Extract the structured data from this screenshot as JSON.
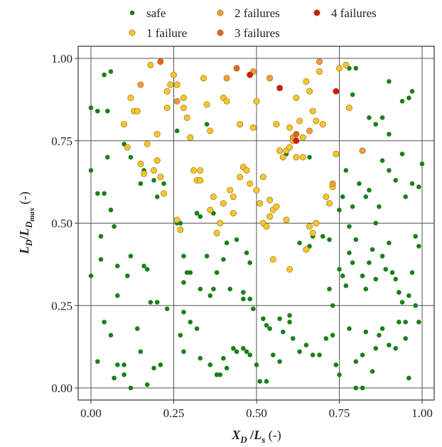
{
  "chart_data": {
    "type": "scatter",
    "title": "",
    "xlim": [
      0,
      1
    ],
    "ylim": [
      0,
      1
    ],
    "grid": true,
    "legend_placement": "top",
    "x_ticks": [
      {
        "value": 0,
        "label": "0.00"
      },
      {
        "value": 0.25,
        "label": "0.25"
      },
      {
        "value": 0.5,
        "label": "0.50"
      },
      {
        "value": 0.75,
        "label": "0.75"
      },
      {
        "value": 1,
        "label": "1.00"
      }
    ],
    "y_ticks": [
      {
        "value": 0,
        "label": "0.00"
      },
      {
        "value": 0.25,
        "label": "0.25"
      },
      {
        "value": 0.5,
        "label": "0.50"
      },
      {
        "value": 0.75,
        "label": "0.75"
      },
      {
        "value": 1,
        "label": "1.00"
      }
    ],
    "xlabel": {
      "main": "X",
      "sub": "D",
      "slash": " /",
      "main2": "L",
      "sub2": "s",
      "unit": " (-)"
    },
    "ylabel": {
      "main": "L",
      "sub": "D",
      "slash": "/",
      "main2": "L",
      "sub2": "D",
      "subsub2": "max",
      "unit": " (-)"
    },
    "series": [
      {
        "name": "safe",
        "color": "#1a7f1a",
        "points": [
          [
            0.0,
            0.85
          ],
          [
            0.02,
            0.84
          ],
          [
            0.04,
            0.95
          ],
          [
            0.05,
            0.84
          ],
          [
            0.06,
            0.96
          ],
          [
            0.0,
            0.66
          ],
          [
            0.02,
            0.59
          ],
          [
            0.04,
            0.59
          ],
          [
            0.05,
            0.7
          ],
          [
            0.06,
            0.54
          ],
          [
            0.1,
            0.74
          ],
          [
            0.12,
            0.7
          ],
          [
            0.15,
            0.62
          ],
          [
            0.16,
            0.66
          ],
          [
            0.19,
            0.63
          ],
          [
            0.2,
            0.58
          ],
          [
            0.22,
            0.62
          ],
          [
            0.26,
            0.78
          ],
          [
            0.32,
            0.53
          ],
          [
            0.33,
            0.52
          ],
          [
            0.35,
            0.8
          ],
          [
            0.37,
            0.53
          ],
          [
            0.0,
            0.34
          ],
          [
            0.03,
            0.46
          ],
          [
            0.03,
            0.39
          ],
          [
            0.07,
            0.49
          ],
          [
            0.08,
            0.37
          ],
          [
            0.08,
            0.28
          ],
          [
            0.11,
            0.34
          ],
          [
            0.12,
            0.4
          ],
          [
            0.16,
            0.37
          ],
          [
            0.17,
            0.36
          ],
          [
            0.18,
            0.26
          ],
          [
            0.2,
            0.26
          ],
          [
            0.23,
            0.24
          ],
          [
            0.26,
            0.5
          ],
          [
            0.27,
            0.5
          ],
          [
            0.28,
            0.4
          ],
          [
            0.29,
            0.35
          ],
          [
            0.3,
            0.35
          ],
          [
            0.28,
            0.32
          ],
          [
            0.28,
            0.23
          ],
          [
            0.33,
            0.3
          ],
          [
            0.35,
            0.4
          ],
          [
            0.36,
            0.28
          ],
          [
            0.37,
            0.3
          ],
          [
            0.38,
            0.35
          ],
          [
            0.4,
            0.39
          ],
          [
            0.41,
            0.44
          ],
          [
            0.42,
            0.3
          ],
          [
            0.44,
            0.45
          ],
          [
            0.46,
            0.29
          ],
          [
            0.47,
            0.41
          ],
          [
            0.48,
            0.38
          ],
          [
            0.46,
            0.27
          ],
          [
            0.48,
            0.27
          ],
          [
            0.49,
            0.24
          ],
          [
            0.52,
            0.21
          ],
          [
            0.53,
            0.19
          ],
          [
            0.54,
            0.18
          ],
          [
            0.57,
            0.21
          ],
          [
            0.6,
            0.22
          ],
          [
            0.02,
            0.08
          ],
          [
            0.04,
            0.2
          ],
          [
            0.06,
            0.16
          ],
          [
            0.07,
            0.03
          ],
          [
            0.08,
            0.07
          ],
          [
            0.1,
            0.07
          ],
          [
            0.1,
            0.04
          ],
          [
            0.12,
            0.0
          ],
          [
            0.14,
            0.18
          ],
          [
            0.15,
            0.11
          ],
          [
            0.17,
            0.01
          ],
          [
            0.19,
            0.06
          ],
          [
            0.21,
            0.07
          ],
          [
            0.27,
            0.16
          ],
          [
            0.28,
            0.11
          ],
          [
            0.3,
            0.2
          ],
          [
            0.32,
            0.18
          ],
          [
            0.33,
            0.09
          ],
          [
            0.36,
            0.07
          ],
          [
            0.38,
            0.04
          ],
          [
            0.39,
            0.04
          ],
          [
            0.4,
            0.09
          ],
          [
            0.41,
            0.06
          ],
          [
            0.43,
            0.12
          ],
          [
            0.44,
            0.11
          ],
          [
            0.46,
            0.12
          ],
          [
            0.47,
            0.11
          ],
          [
            0.48,
            0.1
          ],
          [
            0.5,
            0.07
          ],
          [
            0.51,
            0.02
          ],
          [
            0.53,
            0.02
          ],
          [
            0.55,
            0.1
          ],
          [
            0.57,
            0.08
          ],
          [
            0.58,
            0.17
          ],
          [
            0.6,
            0.2
          ],
          [
            0.61,
            0.15
          ],
          [
            0.63,
            0.11
          ],
          [
            0.65,
            0.13
          ],
          [
            0.67,
            0.1
          ],
          [
            0.69,
            0.1
          ],
          [
            0.71,
            0.15
          ],
          [
            0.73,
            0.16
          ],
          [
            0.74,
            0.07
          ],
          [
            0.75,
            0.04
          ],
          [
            0.63,
            0.44
          ],
          [
            0.66,
            0.43
          ],
          [
            0.67,
            0.46
          ],
          [
            0.7,
            0.46
          ],
          [
            0.72,
            0.45
          ],
          [
            0.72,
            0.3
          ],
          [
            0.73,
            0.25
          ],
          [
            0.75,
            0.36
          ],
          [
            0.76,
            0.34
          ],
          [
            0.77,
            0.31
          ],
          [
            0.78,
            0.49
          ],
          [
            0.78,
            0.41
          ],
          [
            0.79,
            0.38
          ],
          [
            0.8,
            0.45
          ],
          [
            0.82,
            0.34
          ],
          [
            0.83,
            0.3
          ],
          [
            0.84,
            0.38
          ],
          [
            0.85,
            0.42
          ],
          [
            0.86,
            0.33
          ],
          [
            0.88,
            0.4
          ],
          [
            0.89,
            0.36
          ],
          [
            0.9,
            0.44
          ],
          [
            0.91,
            0.35
          ],
          [
            0.92,
            0.33
          ],
          [
            0.93,
            0.29
          ],
          [
            0.94,
            0.26
          ],
          [
            0.95,
            0.2
          ],
          [
            0.96,
            0.28
          ],
          [
            0.97,
            0.35
          ],
          [
            0.98,
            0.46
          ],
          [
            0.99,
            0.43
          ],
          [
            0.78,
            0.18
          ],
          [
            0.8,
            0.08
          ],
          [
            0.82,
            0.1
          ],
          [
            0.83,
            0.17
          ],
          [
            0.85,
            0.05
          ],
          [
            0.86,
            0.12
          ],
          [
            0.87,
            0.16
          ],
          [
            0.88,
            0.18
          ],
          [
            0.9,
            0.13
          ],
          [
            0.92,
            0.12
          ],
          [
            0.93,
            0.2
          ],
          [
            0.95,
            0.15
          ],
          [
            0.96,
            0.03
          ],
          [
            0.98,
            0.25
          ],
          [
            0.99,
            0.2
          ],
          [
            0.8,
            0.0
          ],
          [
            0.82,
            0.0
          ],
          [
            0.75,
            0.54
          ],
          [
            0.76,
            0.58
          ],
          [
            0.77,
            0.66
          ],
          [
            0.79,
            0.55
          ],
          [
            0.81,
            0.62
          ],
          [
            0.83,
            0.58
          ],
          [
            0.84,
            0.6
          ],
          [
            0.86,
            0.5
          ],
          [
            0.87,
            0.55
          ],
          [
            0.88,
            0.69
          ],
          [
            0.9,
            0.66
          ],
          [
            0.92,
            0.63
          ],
          [
            0.94,
            0.71
          ],
          [
            0.95,
            0.58
          ],
          [
            0.97,
            0.62
          ],
          [
            0.99,
            0.61
          ],
          [
            1.0,
            0.68
          ],
          [
            0.8,
            0.97
          ],
          [
            0.78,
            0.97
          ],
          [
            0.79,
            0.89
          ],
          [
            0.84,
            0.82
          ],
          [
            0.86,
            0.8
          ],
          [
            0.88,
            0.82
          ],
          [
            0.9,
            0.93
          ],
          [
            0.9,
            0.77
          ],
          [
            0.94,
            0.87
          ],
          [
            0.96,
            0.88
          ],
          [
            0.97,
            0.9
          ],
          [
            0.59,
            0.71
          ],
          [
            0.66,
            0.7
          ]
        ]
      },
      {
        "name": "1 failure",
        "color": "#f6c52f",
        "points": [
          [
            0.1,
            0.8
          ],
          [
            0.11,
            0.73
          ],
          [
            0.12,
            0.88
          ],
          [
            0.13,
            0.84
          ],
          [
            0.14,
            0.84
          ],
          [
            0.15,
            0.68
          ],
          [
            0.16,
            0.65
          ],
          [
            0.17,
            0.74
          ],
          [
            0.18,
            0.98
          ],
          [
            0.19,
            0.66
          ],
          [
            0.2,
            0.69
          ],
          [
            0.21,
            0.64
          ],
          [
            0.22,
            0.59
          ],
          [
            0.23,
            0.9
          ],
          [
            0.24,
            0.92
          ],
          [
            0.25,
            0.95
          ],
          [
            0.26,
            0.51
          ],
          [
            0.27,
            0.48
          ],
          [
            0.28,
            0.88
          ],
          [
            0.29,
            0.82
          ],
          [
            0.3,
            0.76
          ],
          [
            0.31,
            0.66
          ],
          [
            0.32,
            0.63
          ],
          [
            0.33,
            0.66
          ],
          [
            0.34,
            0.94
          ],
          [
            0.35,
            0.86
          ],
          [
            0.36,
            0.78
          ],
          [
            0.37,
            0.58
          ],
          [
            0.38,
            0.47
          ],
          [
            0.39,
            0.5
          ],
          [
            0.4,
            0.88
          ],
          [
            0.41,
            0.87
          ],
          [
            0.42,
            0.6
          ],
          [
            0.43,
            0.53
          ],
          [
            0.45,
            0.8
          ],
          [
            0.46,
            0.67
          ],
          [
            0.47,
            0.66
          ],
          [
            0.48,
            0.62
          ],
          [
            0.49,
            0.79
          ],
          [
            0.5,
            0.87
          ],
          [
            0.51,
            0.56
          ],
          [
            0.52,
            0.5
          ],
          [
            0.53,
            0.49
          ],
          [
            0.54,
            0.52
          ],
          [
            0.55,
            0.54
          ],
          [
            0.56,
            0.8
          ],
          [
            0.57,
            0.72
          ],
          [
            0.58,
            0.7
          ],
          [
            0.59,
            0.72
          ],
          [
            0.6,
            0.79
          ],
          [
            0.61,
            0.75
          ],
          [
            0.62,
            0.88
          ],
          [
            0.63,
            0.81
          ],
          [
            0.64,
            0.76
          ],
          [
            0.65,
            0.93
          ],
          [
            0.66,
            0.9
          ],
          [
            0.67,
            0.84
          ],
          [
            0.68,
            0.81
          ],
          [
            0.69,
            0.96
          ],
          [
            0.7,
            0.8
          ],
          [
            0.71,
            0.58
          ],
          [
            0.72,
            0.56
          ],
          [
            0.73,
            0.61
          ],
          [
            0.74,
            0.71
          ],
          [
            0.75,
            0.97
          ],
          [
            0.77,
            0.98
          ],
          [
            0.78,
            0.85
          ],
          [
            0.6,
            0.73
          ],
          [
            0.62,
            0.7
          ],
          [
            0.64,
            0.7
          ],
          [
            0.56,
            0.55
          ],
          [
            0.59,
            0.51
          ],
          [
            0.55,
            0.39
          ],
          [
            0.6,
            0.36
          ],
          [
            0.65,
            0.42
          ],
          [
            0.66,
            0.49
          ],
          [
            0.67,
            0.47
          ],
          [
            0.68,
            0.5
          ],
          [
            0.2,
            0.77
          ],
          [
            0.23,
            0.85
          ],
          [
            0.26,
            0.92
          ],
          [
            0.28,
            0.85
          ],
          [
            0.33,
            0.63
          ],
          [
            0.36,
            0.54
          ],
          [
            0.4,
            0.56
          ],
          [
            0.43,
            0.58
          ],
          [
            0.45,
            0.64
          ],
          [
            0.52,
            0.64
          ],
          [
            0.54,
            0.57
          ],
          [
            0.5,
            0.6
          ]
        ]
      },
      {
        "name": "2 failures",
        "color": "#f39c3b",
        "points": [
          [
            0.15,
            0.92
          ],
          [
            0.26,
            0.87
          ],
          [
            0.41,
            0.94
          ],
          [
            0.49,
            0.96
          ],
          [
            0.54,
            0.94
          ],
          [
            0.61,
            0.76
          ],
          [
            0.66,
            0.78
          ],
          [
            0.69,
            0.99
          ],
          [
            0.73,
            0.62
          ],
          [
            0.82,
            0.72
          ]
        ]
      },
      {
        "name": "3 failures",
        "color": "#e8621d",
        "points": [
          [
            0.21,
            0.99
          ],
          [
            0.44,
            0.97
          ],
          [
            0.62,
            0.77
          ]
        ]
      },
      {
        "name": "4 failures",
        "color": "#d91414",
        "points": [
          [
            0.48,
            0.95
          ],
          [
            0.57,
            0.91
          ],
          [
            0.74,
            0.9
          ],
          [
            0.62,
            0.75
          ]
        ]
      }
    ],
    "legend": [
      {
        "name": "safe",
        "color": "#1a7f1a",
        "dot": "small"
      },
      {
        "name": "2 failures",
        "color": "#f39c3b",
        "dot": "large"
      },
      {
        "name": "4 failures",
        "color": "#d91414",
        "dot": "large"
      },
      {
        "name": "1 failure",
        "color": "#f6c52f",
        "dot": "large"
      },
      {
        "name": "3 failures",
        "color": "#e8621d",
        "dot": "large"
      }
    ]
  }
}
